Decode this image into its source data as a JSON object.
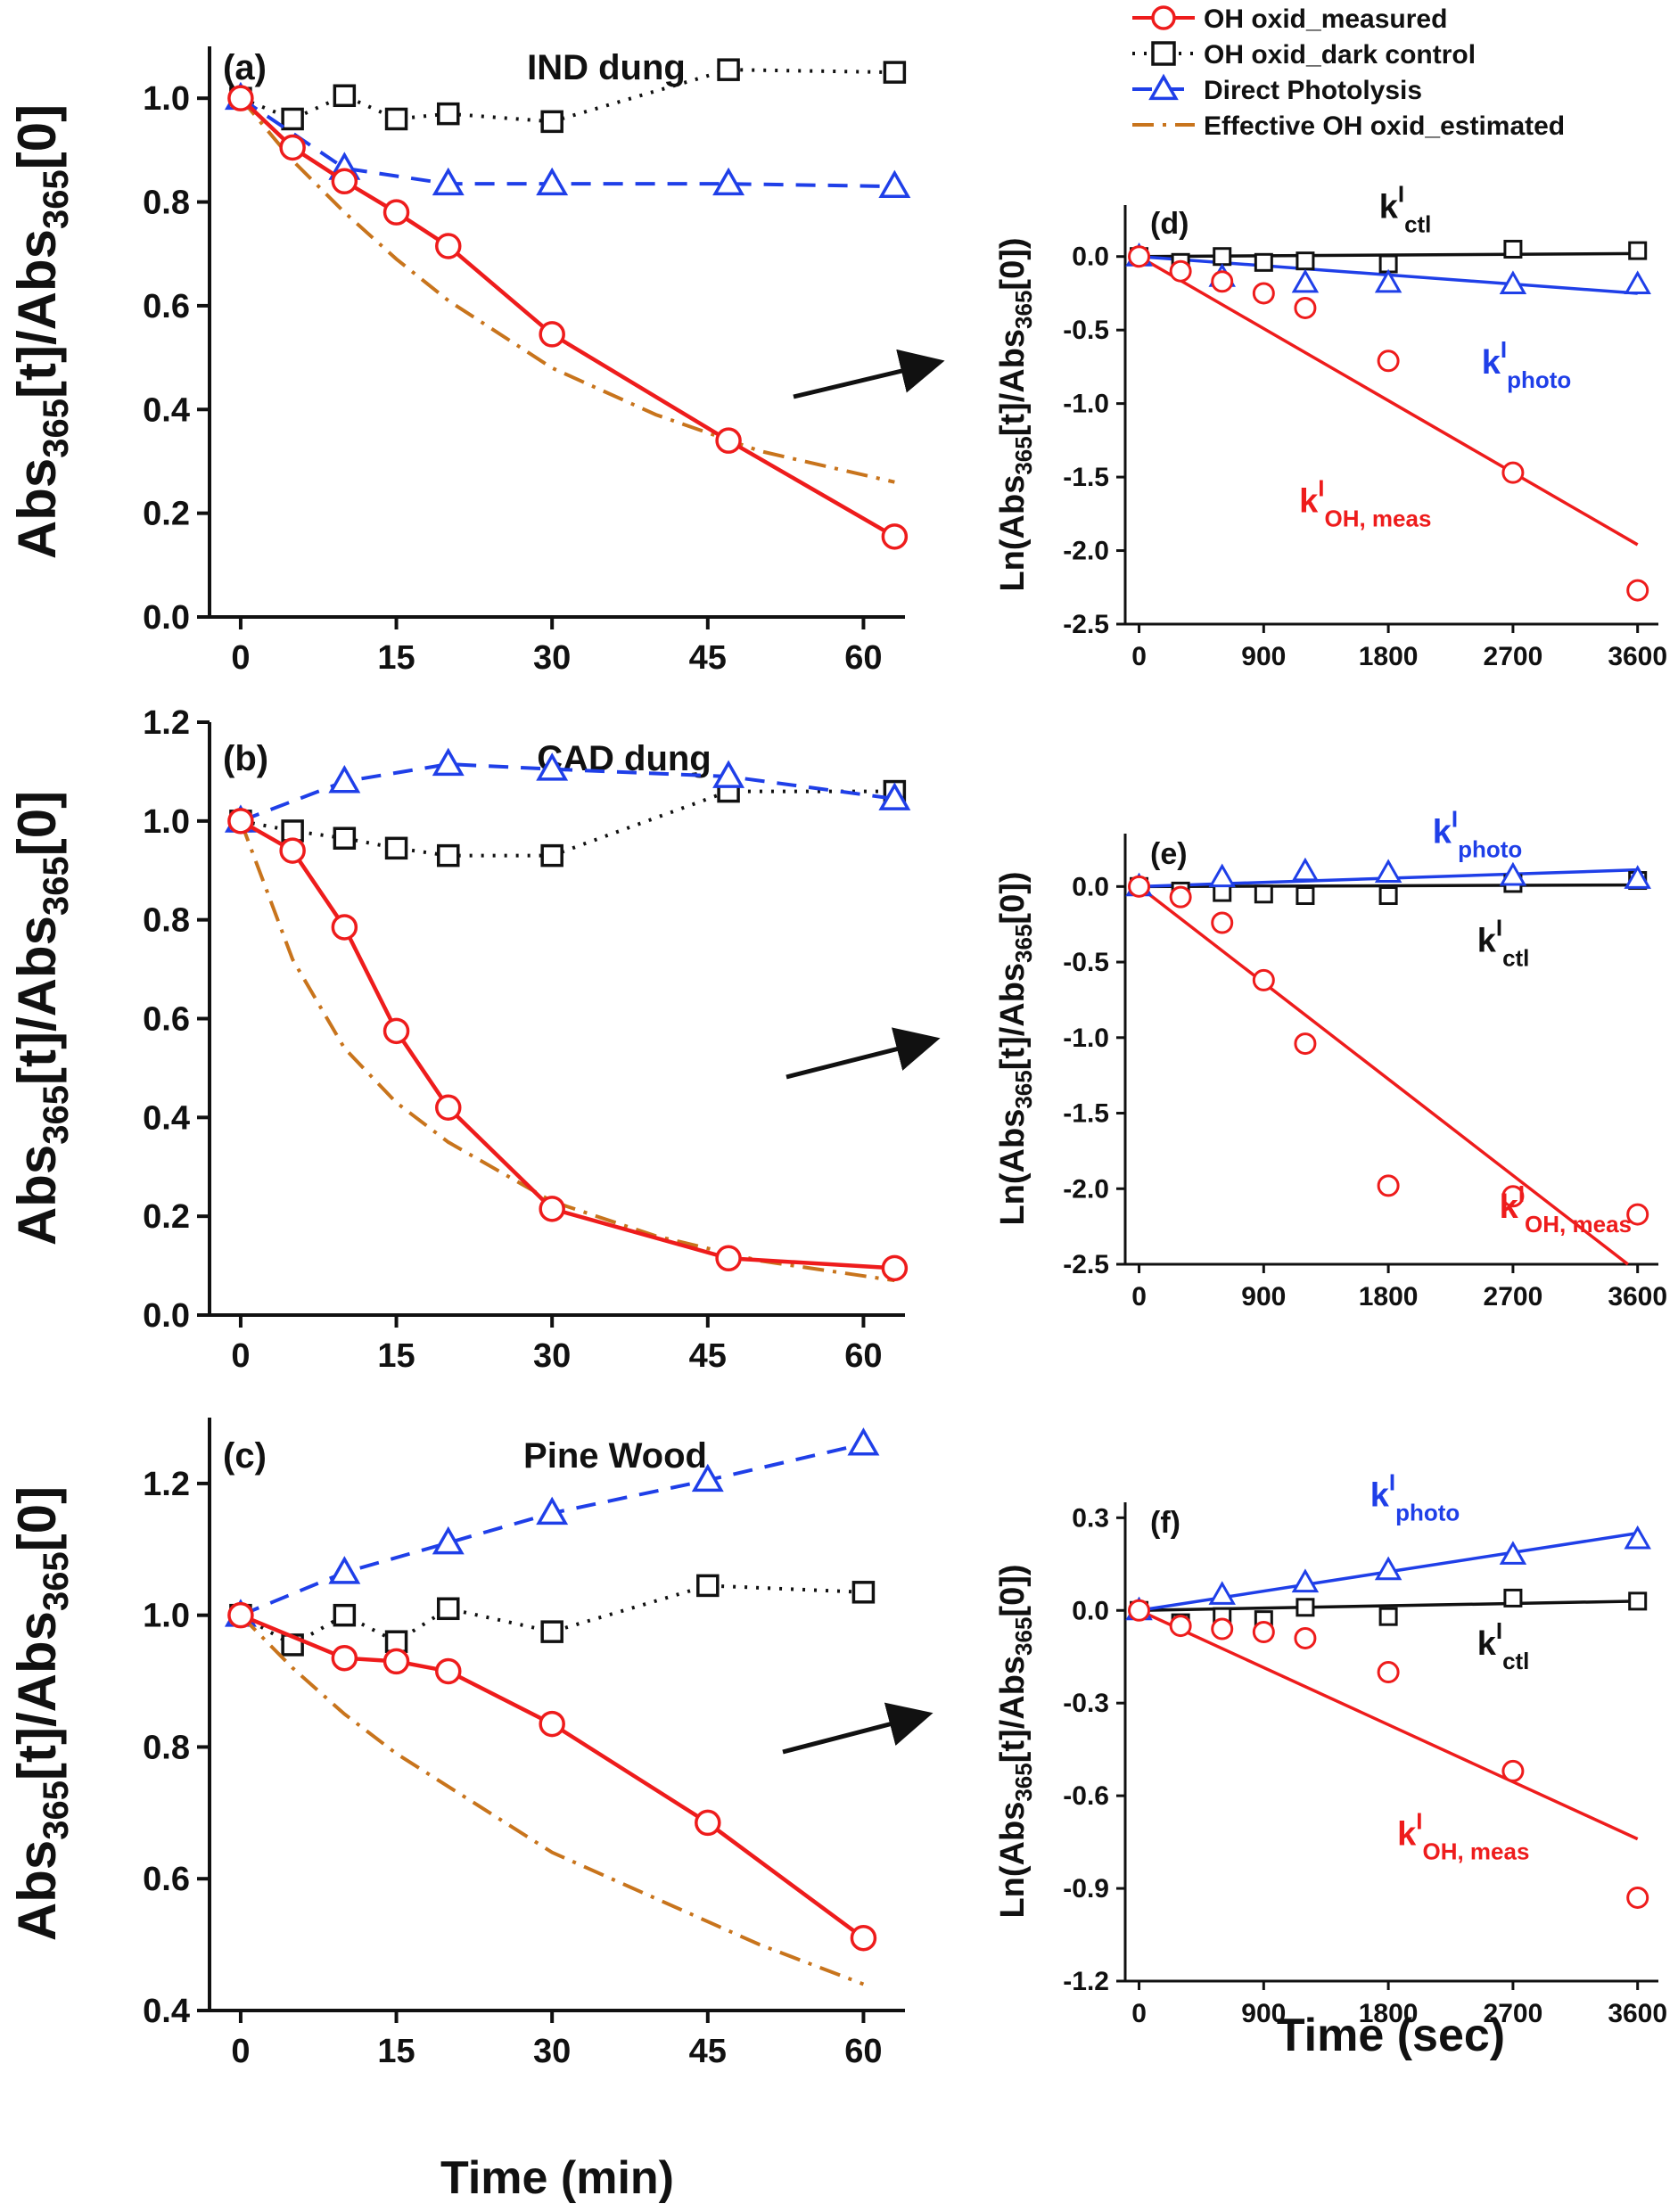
{
  "chart_data": {
    "legend": {
      "placement": "top-right",
      "entries": [
        {
          "key": "measured",
          "label": "OH oxid_measured",
          "color": "#ee1c1c",
          "marker": "circle",
          "line": "solid"
        },
        {
          "key": "dark",
          "label": "OH oxid_dark control",
          "color": "#111111",
          "marker": "square",
          "line": "dotted"
        },
        {
          "key": "photo",
          "label": "Direct Photolysis",
          "color": "#1f3fe8",
          "marker": "triangle",
          "line": "dashed"
        },
        {
          "key": "estimated",
          "label": "Effective OH oxid_estimated",
          "color": "#c8741c",
          "marker": "none",
          "line": "dashdot"
        }
      ]
    },
    "left_common": {
      "ylabel": {
        "pre": "Abs",
        "sub1": "365",
        "mid": "[t]/Abs",
        "sub2": "365",
        "post": "[0]"
      },
      "xlabel": "Time (min)",
      "xlim": [
        -3,
        64
      ],
      "xticks": [
        "0",
        "15",
        "30",
        "45",
        "60"
      ]
    },
    "right_common": {
      "ylabel": {
        "pre": "Ln(Abs",
        "sub1": "365",
        "mid": "[t]/Abs",
        "sub2": "365",
        "post": "[0])"
      },
      "xlabel": "Time (sec)",
      "xlim": [
        -100,
        3750
      ],
      "xticks": [
        "0",
        "900",
        "1800",
        "2700",
        "3600"
      ]
    },
    "panels": [
      {
        "id": "a",
        "label": "(a)",
        "title": "IND dung",
        "type": "line",
        "ylim": [
          0,
          1.1
        ],
        "yticks": [
          "0.0",
          "0.2",
          "0.4",
          "0.6",
          "0.8",
          "1.0"
        ],
        "series": [
          {
            "key": "dark",
            "x": [
              0,
              5,
              10,
              15,
              20,
              30,
              47,
              63
            ],
            "y": [
              1.0,
              0.96,
              1.005,
              0.96,
              0.97,
              0.955,
              1.055,
              1.05
            ]
          },
          {
            "key": "photo",
            "x": [
              0,
              10,
              20,
              30,
              47,
              63
            ],
            "y": [
              1.0,
              0.865,
              0.835,
              0.835,
              0.835,
              0.83
            ]
          },
          {
            "key": "estimated",
            "x": [
              0,
              5,
              10,
              15,
              20,
              30,
              40,
              50,
              63
            ],
            "y": [
              1.0,
              0.88,
              0.78,
              0.69,
              0.61,
              0.48,
              0.39,
              0.32,
              0.26
            ]
          },
          {
            "key": "measured",
            "x": [
              0,
              5,
              10,
              15,
              20,
              30,
              47,
              63
            ],
            "y": [
              1.0,
              0.905,
              0.84,
              0.78,
              0.715,
              0.545,
              0.34,
              0.155
            ]
          }
        ]
      },
      {
        "id": "b",
        "label": "(b)",
        "title": "CAD dung",
        "type": "line",
        "ylim": [
          0,
          1.2
        ],
        "yticks": [
          "0.0",
          "0.2",
          "0.4",
          "0.6",
          "0.8",
          "1.0",
          "1.2"
        ],
        "series": [
          {
            "key": "dark",
            "x": [
              0,
              5,
              10,
              15,
              20,
              30,
              47,
              63
            ],
            "y": [
              1.0,
              0.98,
              0.965,
              0.945,
              0.93,
              0.93,
              1.06,
              1.06
            ]
          },
          {
            "key": "photo",
            "x": [
              0,
              10,
              20,
              30,
              47,
              63
            ],
            "y": [
              1.0,
              1.08,
              1.115,
              1.105,
              1.09,
              1.045
            ]
          },
          {
            "key": "estimated",
            "x": [
              0,
              5,
              10,
              15,
              20,
              30,
              40,
              50,
              63
            ],
            "y": [
              1.0,
              0.72,
              0.54,
              0.43,
              0.35,
              0.23,
              0.16,
              0.11,
              0.07
            ]
          },
          {
            "key": "measured",
            "x": [
              0,
              5,
              10,
              15,
              20,
              30,
              47,
              63
            ],
            "y": [
              1.0,
              0.94,
              0.785,
              0.575,
              0.42,
              0.215,
              0.115,
              0.095
            ]
          }
        ]
      },
      {
        "id": "c",
        "label": "(c)",
        "title": "Pine Wood",
        "type": "line",
        "ylim": [
          0.4,
          1.3
        ],
        "yticks": [
          "0.4",
          "0.6",
          "0.8",
          "1.0",
          "1.2"
        ],
        "series": [
          {
            "key": "dark",
            "x": [
              0,
              5,
              10,
              15,
              20,
              30,
              45,
              60
            ],
            "y": [
              1.0,
              0.955,
              1.0,
              0.96,
              1.01,
              0.975,
              1.045,
              1.035
            ]
          },
          {
            "key": "photo",
            "x": [
              0,
              10,
              20,
              30,
              45,
              60
            ],
            "y": [
              1.0,
              1.065,
              1.11,
              1.155,
              1.205,
              1.26
            ]
          },
          {
            "key": "estimated",
            "x": [
              0,
              5,
              10,
              15,
              20,
              30,
              40,
              50,
              60
            ],
            "y": [
              1.0,
              0.92,
              0.85,
              0.79,
              0.74,
              0.64,
              0.57,
              0.5,
              0.44
            ]
          },
          {
            "key": "measured",
            "x": [
              0,
              10,
              15,
              20,
              30,
              45,
              60
            ],
            "y": [
              1.0,
              0.935,
              0.93,
              0.915,
              0.835,
              0.685,
              0.51
            ]
          }
        ]
      },
      {
        "id": "d",
        "label": "(d)",
        "type": "scatter",
        "ylim": [
          -2.5,
          0.35
        ],
        "yticks": [
          "-2.5",
          "-2.0",
          "-1.5",
          "-1.0",
          "-0.5",
          "0.0"
        ],
        "points": [
          {
            "key": "dark",
            "x": [
              0,
              300,
              600,
              900,
              1200,
              1800,
              2700,
              3600
            ],
            "y": [
              0.0,
              -0.04,
              0.0,
              -0.04,
              -0.03,
              -0.05,
              0.05,
              0.04
            ]
          },
          {
            "key": "photo",
            "x": [
              0,
              600,
              1200,
              1800,
              2700,
              3600
            ],
            "y": [
              0.0,
              -0.14,
              -0.18,
              -0.18,
              -0.19,
              -0.19
            ]
          },
          {
            "key": "measured",
            "x": [
              0,
              300,
              600,
              900,
              1200,
              1800,
              2700,
              3600
            ],
            "y": [
              0.0,
              -0.1,
              -0.17,
              -0.25,
              -0.35,
              -0.71,
              -1.47,
              -2.27
            ]
          }
        ],
        "fits": [
          {
            "key": "dark",
            "x": [
              0,
              3600
            ],
            "y": [
              0.0,
              0.02
            ]
          },
          {
            "key": "photo",
            "x": [
              0,
              3600
            ],
            "y": [
              0.0,
              -0.25
            ]
          },
          {
            "key": "measured",
            "x": [
              0,
              3600
            ],
            "y": [
              0.0,
              -1.96
            ]
          }
        ],
        "annotations": [
          {
            "key": "dark",
            "main": "k",
            "sup": "I",
            "sub": "ctl",
            "anchor": "above-line-end"
          },
          {
            "key": "photo",
            "main": "k",
            "sup": "I",
            "sub": "photo",
            "anchor": "below-line-end"
          },
          {
            "key": "measured",
            "main": "k",
            "sup": "I",
            "sub": "OH, meas",
            "anchor": "below-line-mid"
          }
        ]
      },
      {
        "id": "e",
        "label": "(e)",
        "type": "scatter",
        "ylim": [
          -2.5,
          0.35
        ],
        "yticks": [
          "-2.5",
          "-2.0",
          "-1.5",
          "-1.0",
          "-0.5",
          "0.0"
        ],
        "points": [
          {
            "key": "dark",
            "x": [
              0,
              300,
              600,
              900,
              1200,
              1800,
              2700,
              3600
            ],
            "y": [
              0.0,
              -0.03,
              -0.04,
              -0.05,
              -0.06,
              -0.06,
              0.02,
              0.04
            ]
          },
          {
            "key": "photo",
            "x": [
              0,
              600,
              1200,
              1800,
              2700,
              3600
            ],
            "y": [
              0.0,
              0.06,
              0.1,
              0.09,
              0.07,
              0.05
            ]
          },
          {
            "key": "measured",
            "x": [
              0,
              300,
              600,
              900,
              1200,
              1800,
              2700,
              3600
            ],
            "y": [
              0.0,
              -0.07,
              -0.24,
              -0.62,
              -1.04,
              -1.98,
              -2.05,
              -2.17
            ]
          }
        ],
        "fits": [
          {
            "key": "dark",
            "x": [
              0,
              3600
            ],
            "y": [
              0.0,
              0.01
            ]
          },
          {
            "key": "photo",
            "x": [
              0,
              3600
            ],
            "y": [
              0.0,
              0.11
            ]
          },
          {
            "key": "measured",
            "x": [
              0,
              3530
            ],
            "y": [
              0.0,
              -2.5
            ]
          }
        ],
        "annotations": [
          {
            "key": "photo",
            "main": "k",
            "sup": "I",
            "sub": "photo",
            "anchor": "above-line-end"
          },
          {
            "key": "dark",
            "main": "k",
            "sup": "I",
            "sub": "ctl",
            "anchor": "below-line-end"
          },
          {
            "key": "measured",
            "main": "k",
            "sup": "I",
            "sub": "OH, meas",
            "anchor": "right-of-line"
          }
        ]
      },
      {
        "id": "f",
        "label": "(f)",
        "type": "scatter",
        "ylim": [
          -1.2,
          0.35
        ],
        "yticks": [
          "-1.2",
          "-0.9",
          "-0.6",
          "-0.3",
          "0.0",
          "0.3"
        ],
        "points": [
          {
            "key": "dark",
            "x": [
              0,
              300,
              600,
              900,
              1200,
              1800,
              2700,
              3600
            ],
            "y": [
              0.0,
              -0.04,
              -0.02,
              -0.03,
              0.01,
              -0.02,
              0.04,
              0.03
            ]
          },
          {
            "key": "photo",
            "x": [
              0,
              600,
              1200,
              1800,
              2700,
              3600
            ],
            "y": [
              0.0,
              0.05,
              0.09,
              0.13,
              0.18,
              0.23
            ]
          },
          {
            "key": "measured",
            "x": [
              0,
              300,
              600,
              900,
              1200,
              1800,
              2700,
              3600
            ],
            "y": [
              0.0,
              -0.05,
              -0.06,
              -0.07,
              -0.09,
              -0.2,
              -0.52,
              -0.93
            ]
          }
        ],
        "fits": [
          {
            "key": "dark",
            "x": [
              0,
              3600
            ],
            "y": [
              0.0,
              0.03
            ]
          },
          {
            "key": "photo",
            "x": [
              0,
              3600
            ],
            "y": [
              0.0,
              0.25
            ]
          },
          {
            "key": "measured",
            "x": [
              0,
              3600
            ],
            "y": [
              0.0,
              -0.74
            ]
          }
        ],
        "annotations": [
          {
            "key": "photo",
            "main": "k",
            "sup": "I",
            "sub": "photo",
            "anchor": "above-line-end"
          },
          {
            "key": "dark",
            "main": "k",
            "sup": "I",
            "sub": "ctl",
            "anchor": "below-line-end"
          },
          {
            "key": "measured",
            "main": "k",
            "sup": "I",
            "sub": "OH, meas",
            "anchor": "below-line-mid"
          }
        ]
      }
    ]
  }
}
